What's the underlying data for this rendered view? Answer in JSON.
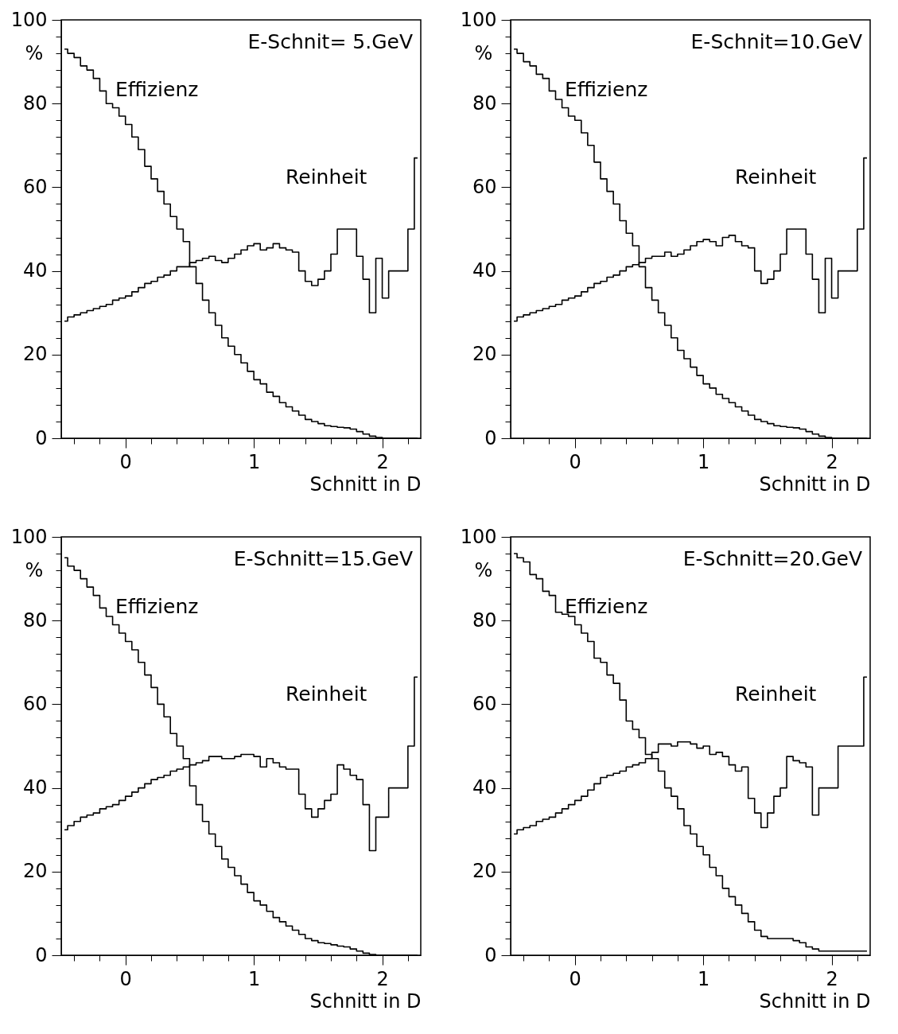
{
  "chart_data": [
    {
      "type": "step",
      "annotations": [
        "E-Schnit= 5.GeV"
      ],
      "xlabel": "Schnitt in D",
      "ylabel": "%",
      "xlim": [
        -0.5,
        2.3
      ],
      "ylim": [
        0,
        100
      ],
      "xticks": [
        {
          "value": -0.4,
          "label": null
        },
        {
          "value": -0.2,
          "label": null
        },
        0,
        {
          "value": 0.2,
          "label": null
        },
        {
          "value": 0.4,
          "label": null
        },
        {
          "value": 0.6,
          "label": null
        },
        {
          "value": 0.8,
          "label": null
        },
        1,
        {
          "value": 1.2,
          "label": null
        },
        {
          "value": 1.4,
          "label": null
        },
        {
          "value": 1.6,
          "label": null
        },
        {
          "value": 1.8,
          "label": null
        },
        2,
        {
          "value": 2.2,
          "label": null
        }
      ],
      "yticks": [
        0,
        {
          "value": 4,
          "label": null
        },
        {
          "value": 8,
          "label": null
        },
        {
          "value": 12,
          "label": null
        },
        {
          "value": 16,
          "label": null
        },
        20,
        {
          "value": 24,
          "label": null
        },
        {
          "value": 28,
          "label": null
        },
        {
          "value": 32,
          "label": null
        },
        {
          "value": 36,
          "label": null
        },
        40,
        {
          "value": 44,
          "label": null
        },
        {
          "value": 48,
          "label": null
        },
        {
          "value": 52,
          "label": null
        },
        {
          "value": 56,
          "label": null
        },
        60,
        {
          "value": 64,
          "label": null
        },
        {
          "value": 68,
          "label": null
        },
        {
          "value": 72,
          "label": null
        },
        {
          "value": 76,
          "label": null
        },
        80,
        {
          "value": 84,
          "label": null
        },
        {
          "value": 88,
          "label": null
        },
        {
          "value": 92,
          "label": null
        },
        {
          "value": 96,
          "label": null
        },
        100
      ],
      "x": [
        -0.475,
        -0.425,
        -0.375,
        -0.325,
        -0.275,
        -0.225,
        -0.175,
        -0.125,
        -0.075,
        -0.025,
        0.025,
        0.075,
        0.125,
        0.175,
        0.225,
        0.275,
        0.325,
        0.375,
        0.425,
        0.475,
        0.525,
        0.575,
        0.625,
        0.675,
        0.725,
        0.775,
        0.825,
        0.875,
        0.925,
        0.975,
        1.025,
        1.075,
        1.125,
        1.175,
        1.225,
        1.275,
        1.325,
        1.375,
        1.425,
        1.475,
        1.525,
        1.575,
        1.625,
        1.675,
        1.725,
        1.775,
        1.825,
        1.875,
        1.925,
        1.975,
        2.025,
        2.075,
        2.125,
        2.175,
        2.225,
        2.275
      ],
      "series": [
        {
          "name": "Effizienz",
          "color": "#000000",
          "values": [
            93,
            92,
            91,
            89,
            88,
            86,
            83,
            80,
            79,
            77,
            75,
            72,
            69,
            65,
            62,
            59,
            56,
            53,
            50,
            47,
            41,
            37,
            33,
            30,
            27,
            24,
            22,
            20,
            18,
            16,
            14,
            13,
            11,
            10,
            8.5,
            7.5,
            6.5,
            5.5,
            4.5,
            4,
            3.5,
            3,
            2.8,
            2.6,
            2.5,
            2.2,
            1.6,
            1,
            0.5,
            0.2,
            0,
            0,
            0,
            0,
            0,
            0
          ]
        },
        {
          "name": "Reinheit",
          "color": "#000000",
          "values": [
            28,
            29,
            29.5,
            30,
            30.5,
            31,
            31.5,
            32,
            33,
            33.5,
            34,
            35,
            36,
            37,
            37.5,
            38.5,
            39,
            40,
            41,
            41,
            42,
            42.5,
            43,
            43.5,
            42.5,
            42,
            43,
            44,
            45,
            46,
            46.5,
            45,
            45.5,
            46.5,
            45.5,
            45,
            44.5,
            40,
            37.5,
            36.5,
            38,
            40,
            44,
            50,
            50,
            50,
            43.5,
            38,
            30,
            43,
            33.5,
            40,
            40,
            40,
            50,
            67
          ]
        }
      ]
    },
    {
      "type": "step",
      "annotations": [
        "E-Schnit=10.GeV"
      ],
      "xlabel": "Schnitt in D",
      "ylabel": "%",
      "xlim": [
        -0.5,
        2.3
      ],
      "ylim": [
        0,
        100
      ],
      "xticks": [
        {
          "value": -0.4,
          "label": null
        },
        {
          "value": -0.2,
          "label": null
        },
        0,
        {
          "value": 0.2,
          "label": null
        },
        {
          "value": 0.4,
          "label": null
        },
        {
          "value": 0.6,
          "label": null
        },
        {
          "value": 0.8,
          "label": null
        },
        1,
        {
          "value": 1.2,
          "label": null
        },
        {
          "value": 1.4,
          "label": null
        },
        {
          "value": 1.6,
          "label": null
        },
        {
          "value": 1.8,
          "label": null
        },
        2,
        {
          "value": 2.2,
          "label": null
        }
      ],
      "yticks": [
        0,
        {
          "value": 4,
          "label": null
        },
        {
          "value": 8,
          "label": null
        },
        {
          "value": 12,
          "label": null
        },
        {
          "value": 16,
          "label": null
        },
        20,
        {
          "value": 24,
          "label": null
        },
        {
          "value": 28,
          "label": null
        },
        {
          "value": 32,
          "label": null
        },
        {
          "value": 36,
          "label": null
        },
        40,
        {
          "value": 44,
          "label": null
        },
        {
          "value": 48,
          "label": null
        },
        {
          "value": 52,
          "label": null
        },
        {
          "value": 56,
          "label": null
        },
        60,
        {
          "value": 64,
          "label": null
        },
        {
          "value": 68,
          "label": null
        },
        {
          "value": 72,
          "label": null
        },
        {
          "value": 76,
          "label": null
        },
        80,
        {
          "value": 84,
          "label": null
        },
        {
          "value": 88,
          "label": null
        },
        {
          "value": 92,
          "label": null
        },
        {
          "value": 96,
          "label": null
        },
        100
      ],
      "x": [
        -0.475,
        -0.425,
        -0.375,
        -0.325,
        -0.275,
        -0.225,
        -0.175,
        -0.125,
        -0.075,
        -0.025,
        0.025,
        0.075,
        0.125,
        0.175,
        0.225,
        0.275,
        0.325,
        0.375,
        0.425,
        0.475,
        0.525,
        0.575,
        0.625,
        0.675,
        0.725,
        0.775,
        0.825,
        0.875,
        0.925,
        0.975,
        1.025,
        1.075,
        1.125,
        1.175,
        1.225,
        1.275,
        1.325,
        1.375,
        1.425,
        1.475,
        1.525,
        1.575,
        1.625,
        1.675,
        1.725,
        1.775,
        1.825,
        1.875,
        1.925,
        1.975,
        2.025,
        2.075,
        2.125,
        2.175,
        2.225,
        2.275
      ],
      "series": [
        {
          "name": "Effizienz",
          "color": "#000000",
          "values": [
            93,
            92,
            90,
            89,
            87,
            86,
            83,
            81,
            79,
            77,
            76,
            73,
            70,
            66,
            62,
            59,
            56,
            52,
            49,
            46,
            41,
            36,
            33,
            30,
            27,
            24,
            21,
            19,
            17,
            15,
            13,
            12,
            10.5,
            9.5,
            8.5,
            7.5,
            6.5,
            5.5,
            4.5,
            4,
            3.5,
            3,
            2.8,
            2.6,
            2.5,
            2.2,
            1.6,
            1,
            0.5,
            0.2,
            0,
            0,
            0,
            0,
            0,
            0
          ]
        },
        {
          "name": "Reinheit",
          "color": "#000000",
          "values": [
            28,
            29,
            29.5,
            30,
            30.5,
            31,
            31.5,
            32,
            33,
            33.5,
            34,
            35,
            36,
            37,
            37.5,
            38.5,
            39,
            40,
            41,
            41.5,
            42,
            43,
            43.5,
            43.5,
            44.5,
            43.5,
            44,
            45,
            46,
            47,
            47.5,
            47,
            46,
            48,
            48.5,
            47,
            46,
            45.5,
            40,
            37,
            38,
            40,
            44,
            50,
            50,
            50,
            44,
            38,
            30,
            43,
            33.5,
            40,
            40,
            40,
            50,
            67
          ]
        }
      ]
    },
    {
      "type": "step",
      "annotations": [
        "E-Schnitt=15.GeV"
      ],
      "xlabel": "Schnitt in D",
      "ylabel": "%",
      "xlim": [
        -0.5,
        2.3
      ],
      "ylim": [
        0,
        100
      ],
      "xticks": [
        {
          "value": -0.4,
          "label": null
        },
        {
          "value": -0.2,
          "label": null
        },
        0,
        {
          "value": 0.2,
          "label": null
        },
        {
          "value": 0.4,
          "label": null
        },
        {
          "value": 0.6,
          "label": null
        },
        {
          "value": 0.8,
          "label": null
        },
        1,
        {
          "value": 1.2,
          "label": null
        },
        {
          "value": 1.4,
          "label": null
        },
        {
          "value": 1.6,
          "label": null
        },
        {
          "value": 1.8,
          "label": null
        },
        2,
        {
          "value": 2.2,
          "label": null
        }
      ],
      "yticks": [
        0,
        {
          "value": 4,
          "label": null
        },
        {
          "value": 8,
          "label": null
        },
        {
          "value": 12,
          "label": null
        },
        {
          "value": 16,
          "label": null
        },
        20,
        {
          "value": 24,
          "label": null
        },
        {
          "value": 28,
          "label": null
        },
        {
          "value": 32,
          "label": null
        },
        {
          "value": 36,
          "label": null
        },
        40,
        {
          "value": 44,
          "label": null
        },
        {
          "value": 48,
          "label": null
        },
        {
          "value": 52,
          "label": null
        },
        {
          "value": 56,
          "label": null
        },
        60,
        {
          "value": 64,
          "label": null
        },
        {
          "value": 68,
          "label": null
        },
        {
          "value": 72,
          "label": null
        },
        {
          "value": 76,
          "label": null
        },
        80,
        {
          "value": 84,
          "label": null
        },
        {
          "value": 88,
          "label": null
        },
        {
          "value": 92,
          "label": null
        },
        {
          "value": 96,
          "label": null
        },
        100
      ],
      "x": [
        -0.475,
        -0.425,
        -0.375,
        -0.325,
        -0.275,
        -0.225,
        -0.175,
        -0.125,
        -0.075,
        -0.025,
        0.025,
        0.075,
        0.125,
        0.175,
        0.225,
        0.275,
        0.325,
        0.375,
        0.425,
        0.475,
        0.525,
        0.575,
        0.625,
        0.675,
        0.725,
        0.775,
        0.825,
        0.875,
        0.925,
        0.975,
        1.025,
        1.075,
        1.125,
        1.175,
        1.225,
        1.275,
        1.325,
        1.375,
        1.425,
        1.475,
        1.525,
        1.575,
        1.625,
        1.675,
        1.725,
        1.775,
        1.825,
        1.875,
        1.925,
        1.975,
        2.025,
        2.075,
        2.125,
        2.175,
        2.225,
        2.275
      ],
      "series": [
        {
          "name": "Effizienz",
          "color": "#000000",
          "values": [
            95,
            93,
            92,
            90,
            88,
            86,
            83,
            81,
            79,
            77,
            75,
            73,
            70,
            67,
            64,
            60,
            57,
            53,
            50,
            47,
            40.5,
            36,
            32,
            29,
            26,
            23,
            21,
            19,
            17,
            15,
            13,
            12,
            10.5,
            9,
            8,
            7,
            6,
            5,
            4,
            3.5,
            3,
            2.8,
            2.5,
            2.2,
            2,
            1.5,
            1,
            0.5,
            0.2,
            0,
            0,
            0,
            0,
            0,
            0,
            0
          ]
        },
        {
          "name": "Reinheit",
          "color": "#000000",
          "values": [
            30,
            31,
            32,
            33,
            33.5,
            34,
            35,
            35.5,
            36,
            37,
            38,
            39,
            40,
            41,
            42,
            42.5,
            43,
            44,
            44.5,
            45,
            45.5,
            46,
            46.5,
            47.5,
            47.5,
            47,
            47,
            47.5,
            48,
            48,
            47.5,
            45,
            47,
            46,
            45,
            44.5,
            44.5,
            38.5,
            35,
            33,
            35,
            37,
            38.5,
            45.5,
            44.5,
            43,
            42,
            36,
            25,
            33,
            33,
            40,
            40,
            40,
            50,
            66.5
          ]
        }
      ]
    },
    {
      "type": "step",
      "annotations": [
        "E-Schnitt=20.GeV"
      ],
      "xlabel": "Schnitt in D",
      "ylabel": "%",
      "xlim": [
        -0.5,
        2.3
      ],
      "ylim": [
        0,
        100
      ],
      "xticks": [
        {
          "value": -0.4,
          "label": null
        },
        {
          "value": -0.2,
          "label": null
        },
        0,
        {
          "value": 0.2,
          "label": null
        },
        {
          "value": 0.4,
          "label": null
        },
        {
          "value": 0.6,
          "label": null
        },
        {
          "value": 0.8,
          "label": null
        },
        1,
        {
          "value": 1.2,
          "label": null
        },
        {
          "value": 1.4,
          "label": null
        },
        {
          "value": 1.6,
          "label": null
        },
        {
          "value": 1.8,
          "label": null
        },
        2,
        {
          "value": 2.2,
          "label": null
        }
      ],
      "yticks": [
        0,
        {
          "value": 4,
          "label": null
        },
        {
          "value": 8,
          "label": null
        },
        {
          "value": 12,
          "label": null
        },
        {
          "value": 16,
          "label": null
        },
        20,
        {
          "value": 24,
          "label": null
        },
        {
          "value": 28,
          "label": null
        },
        {
          "value": 32,
          "label": null
        },
        {
          "value": 36,
          "label": null
        },
        40,
        {
          "value": 44,
          "label": null
        },
        {
          "value": 48,
          "label": null
        },
        {
          "value": 52,
          "label": null
        },
        {
          "value": 56,
          "label": null
        },
        60,
        {
          "value": 64,
          "label": null
        },
        {
          "value": 68,
          "label": null
        },
        {
          "value": 72,
          "label": null
        },
        {
          "value": 76,
          "label": null
        },
        80,
        {
          "value": 84,
          "label": null
        },
        {
          "value": 88,
          "label": null
        },
        {
          "value": 92,
          "label": null
        },
        {
          "value": 96,
          "label": null
        },
        100
      ],
      "x": [
        -0.475,
        -0.425,
        -0.375,
        -0.325,
        -0.275,
        -0.225,
        -0.175,
        -0.125,
        -0.075,
        -0.025,
        0.025,
        0.075,
        0.125,
        0.175,
        0.225,
        0.275,
        0.325,
        0.375,
        0.425,
        0.475,
        0.525,
        0.575,
        0.625,
        0.675,
        0.725,
        0.775,
        0.825,
        0.875,
        0.925,
        0.975,
        1.025,
        1.075,
        1.125,
        1.175,
        1.225,
        1.275,
        1.325,
        1.375,
        1.425,
        1.475,
        1.525,
        1.575,
        1.625,
        1.675,
        1.725,
        1.775,
        1.825,
        1.875,
        1.925,
        1.975,
        2.025,
        2.075,
        2.125,
        2.175,
        2.225,
        2.275
      ],
      "series": [
        {
          "name": "Effizienz",
          "color": "#000000",
          "values": [
            96,
            95,
            94,
            91,
            90,
            87,
            86,
            82,
            81.5,
            81,
            79,
            77,
            75,
            71,
            70,
            67,
            65,
            61,
            56,
            54,
            52,
            48,
            47,
            44,
            40,
            38,
            35,
            31,
            29,
            26,
            24,
            21,
            19,
            16,
            14,
            12,
            10,
            8,
            6,
            4.5,
            4,
            4,
            4,
            4,
            3.5,
            3,
            2,
            1.5,
            1,
            1,
            1,
            1,
            1,
            1,
            1,
            1
          ]
        },
        {
          "name": "Reinheit",
          "color": "#000000",
          "values": [
            29,
            30,
            30.5,
            31,
            32,
            32.5,
            33,
            34,
            35,
            36,
            37,
            38,
            39.5,
            41,
            42.5,
            43,
            43.5,
            44,
            45,
            45.5,
            46,
            47,
            48.5,
            50.5,
            50.5,
            50,
            51,
            51,
            50.5,
            49.5,
            50,
            48,
            48.5,
            47.5,
            45.5,
            44,
            45,
            37.5,
            34,
            30.5,
            34,
            38,
            40,
            47.5,
            46.5,
            46,
            45,
            33.5,
            40,
            40,
            40,
            50,
            50,
            50,
            50,
            66.5
          ]
        }
      ]
    }
  ]
}
